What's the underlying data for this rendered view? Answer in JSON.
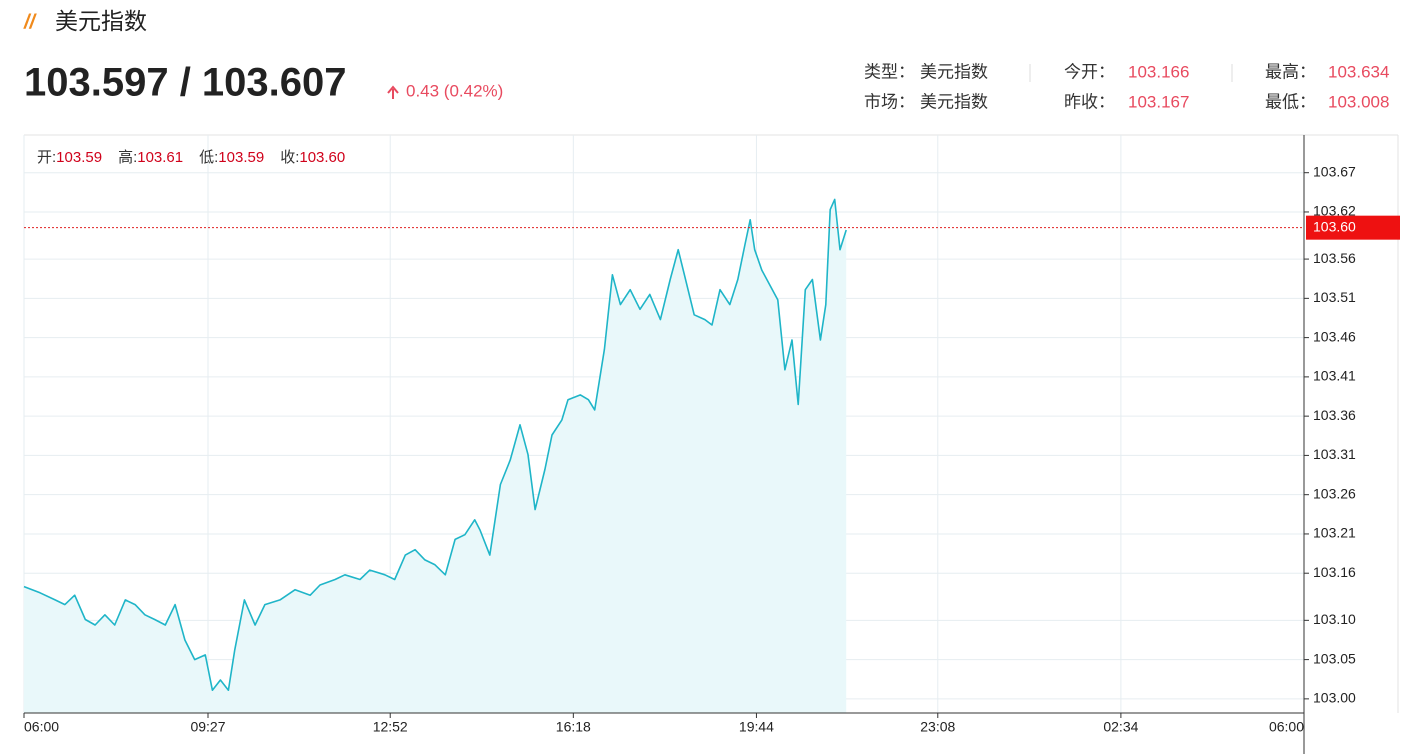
{
  "header": {
    "title": "美元指数",
    "price": "103.597 / 103.607",
    "change": "0.43 (0.42%)"
  },
  "stats": [
    {
      "label": "类型：",
      "value": "美元指数"
    },
    {
      "label": "市场：",
      "value": "美元指数"
    },
    {
      "label": "今开：",
      "value": "103.166"
    },
    {
      "label": "昨收：",
      "value": "103.167"
    },
    {
      "label": "最高：",
      "value": "103.634"
    },
    {
      "label": "最低：",
      "value": "103.008"
    }
  ],
  "ohlc": [
    {
      "label": "开:",
      "value": "103.59"
    },
    {
      "label": "高:",
      "value": "103.61"
    },
    {
      "label": "低:",
      "value": "103.59"
    },
    {
      "label": "收:",
      "value": "103.60"
    }
  ],
  "chart": {
    "type": "line",
    "color": "#1fb5c8",
    "area_color": "#e9f8fa",
    "xlim": [
      0,
      1440
    ],
    "xticks": [
      {
        "value": 0,
        "label": "06:00"
      },
      {
        "value": 207,
        "label": "09:27"
      },
      {
        "value": 412,
        "label": "12:52"
      },
      {
        "value": 618,
        "label": "16:18"
      },
      {
        "value": 824,
        "label": "19:44"
      },
      {
        "value": 1028,
        "label": "23:08"
      },
      {
        "value": 1234,
        "label": "02:34"
      },
      {
        "value": 1440,
        "label": "06:00"
      }
    ],
    "ylim": [
      102.982,
      103.718
    ],
    "yticks": [
      {
        "value": 103,
        "label": "103.00"
      },
      103.05,
      {
        "value": 103.1,
        "label": "103.10"
      },
      103.16,
      103.21,
      103.26,
      103.31,
      103.36,
      103.41,
      103.46,
      103.51,
      103.56,
      103.62,
      103.67
    ],
    "last_price": {
      "value": 103.6,
      "label": "103.60"
    },
    "x": [
      0,
      18,
      35,
      46,
      57,
      69,
      80,
      91,
      102,
      114,
      125,
      136,
      147,
      159,
      170,
      181,
      192,
      204,
      212,
      221,
      230,
      237,
      248,
      260,
      271,
      288,
      305,
      322,
      333,
      350,
      361,
      378,
      389,
      406,
      417,
      429,
      440,
      451,
      462,
      474,
      485,
      496,
      507,
      513,
      524,
      536,
      547,
      558,
      567,
      575,
      586,
      594,
      605,
      612,
      626,
      635,
      642,
      653,
      662,
      671,
      682,
      693,
      704,
      716,
      727,
      736,
      743,
      754,
      766,
      774,
      783,
      794,
      803,
      811,
      817,
      822,
      830,
      839,
      848,
      856,
      864,
      871,
      879,
      887,
      896,
      902,
      907,
      912,
      918,
      925
    ],
    "values": [
      103.143,
      103.135,
      103.126,
      103.12,
      103.132,
      103.101,
      103.094,
      103.107,
      103.094,
      103.126,
      103.12,
      103.107,
      103.101,
      103.094,
      103.12,
      103.075,
      103.05,
      103.056,
      103.011,
      103.024,
      103.011,
      103.062,
      103.126,
      103.094,
      103.12,
      103.126,
      103.139,
      103.132,
      103.145,
      103.152,
      103.158,
      103.152,
      103.164,
      103.158,
      103.152,
      103.183,
      103.19,
      103.177,
      103.171,
      103.158,
      103.203,
      103.209,
      103.228,
      103.215,
      103.183,
      103.273,
      103.304,
      103.349,
      103.311,
      103.241,
      103.292,
      103.336,
      103.355,
      103.381,
      103.387,
      103.381,
      103.368,
      103.445,
      103.54,
      103.502,
      103.521,
      103.496,
      103.515,
      103.483,
      103.534,
      103.572,
      103.54,
      103.489,
      103.483,
      103.476,
      103.521,
      103.502,
      103.534,
      103.578,
      103.61,
      103.572,
      103.546,
      103.527,
      103.508,
      103.419,
      103.457,
      103.375,
      103.521,
      103.534,
      103.457,
      103.502,
      103.623,
      103.636,
      103.572,
      103.597
    ]
  }
}
